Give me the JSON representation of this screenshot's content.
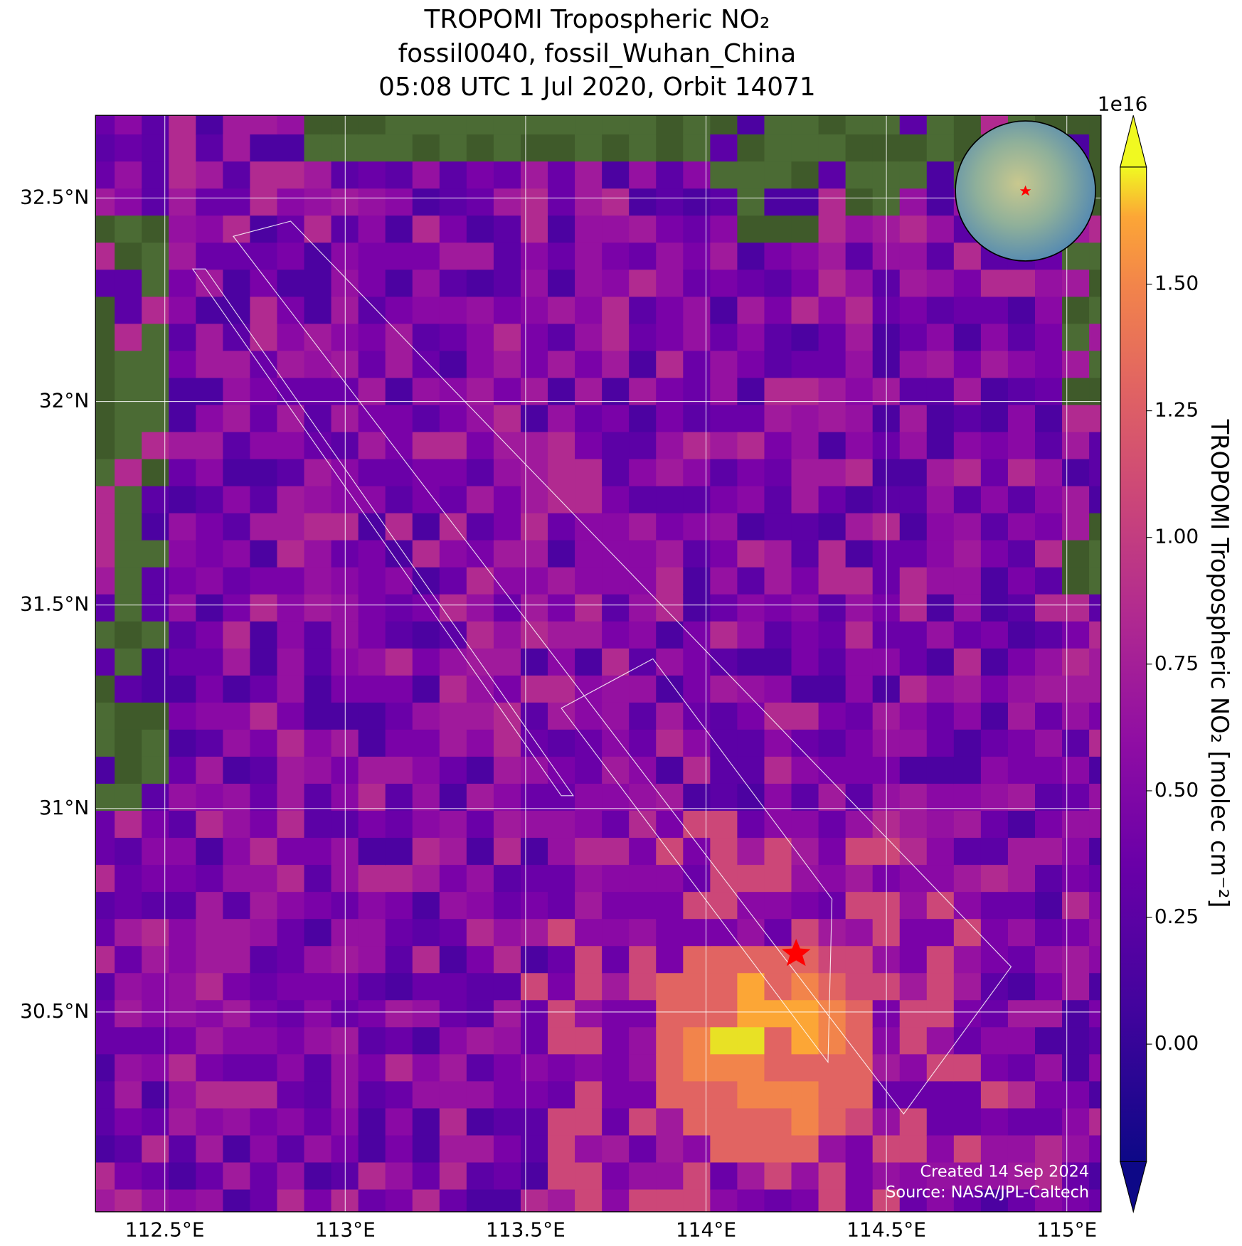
{
  "chart_data": {
    "type": "map",
    "title": [
      "TROPOMI Tropospheric NO₂",
      "fossil0040, fossil_Wuhan_China",
      "05:08 UTC 1 Jul 2020, Orbit 14071"
    ],
    "xlim": [
      112.308,
      115.095
    ],
    "ylim": [
      30.009,
      32.703
    ],
    "xticks": [
      {
        "value": 112.5,
        "label": "112.5°E"
      },
      {
        "value": 113,
        "label": "113°E"
      },
      {
        "value": 113.5,
        "label": "113.5°E"
      },
      {
        "value": 114,
        "label": "114°E"
      },
      {
        "value": 114.5,
        "label": "114.5°E"
      },
      {
        "value": 115,
        "label": "115°E"
      }
    ],
    "yticks": [
      {
        "value": 30.5,
        "label": "30.5°N"
      },
      {
        "value": 31,
        "label": "31°N"
      },
      {
        "value": 31.5,
        "label": "31.5°N"
      },
      {
        "value": 32,
        "label": "32°N"
      },
      {
        "value": 32.5,
        "label": "32.5°N"
      }
    ],
    "grid": true,
    "colorbar": {
      "label": "TROPOMI Tropospheric NO₂ [molec cm⁻²]",
      "exponent": "1e16",
      "lim": [
        -0.232,
        1.731
      ],
      "ticks": [
        {
          "value": 0,
          "label": "0.00"
        },
        {
          "value": 0.25,
          "label": "0.25"
        },
        {
          "value": 0.5,
          "label": "0.50"
        },
        {
          "value": 0.75,
          "label": "0.75"
        },
        {
          "value": 1,
          "label": "1.00"
        },
        {
          "value": 1.25,
          "label": "1.25"
        },
        {
          "value": 1.5,
          "label": "1.50"
        }
      ]
    },
    "credits": [
      "Created 14 Sep 2024",
      "Source: NASA/JPL-Caltech"
    ]
  }
}
